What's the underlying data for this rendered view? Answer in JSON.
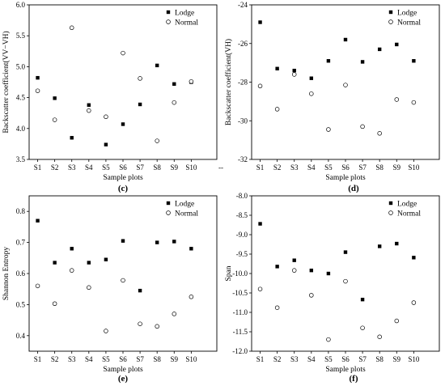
{
  "chart_data": [
    {
      "id": "c",
      "type": "scatter",
      "panel_label": "(c)",
      "xlabel": "Sample plots",
      "ylabel": "Backscatter coefficient(VV−VH)",
      "categories": [
        "S1",
        "S2",
        "S3",
        "S4",
        "S5",
        "S6",
        "S7",
        "S8",
        "S9",
        "S10"
      ],
      "extra_xtick": "--",
      "ylim": [
        3.5,
        6.0
      ],
      "yticks": [
        "3.5",
        "4.0",
        "4.5",
        "5.0",
        "5.5",
        "6.0"
      ],
      "legend_position": "top-right",
      "series": [
        {
          "name": "Lodge",
          "marker": "filled-square",
          "values": [
            4.82,
            4.49,
            3.85,
            4.38,
            3.74,
            4.07,
            4.39,
            5.02,
            4.72,
            4.75
          ]
        },
        {
          "name": "Normal",
          "marker": "open-circle",
          "values": [
            4.61,
            4.14,
            5.63,
            4.29,
            4.19,
            5.22,
            4.81,
            3.8,
            4.42,
            4.76
          ]
        }
      ]
    },
    {
      "id": "d",
      "type": "scatter",
      "panel_label": "(d)",
      "xlabel": "Sample plots",
      "ylabel": "Backscatter coefficient(VH)",
      "categories": [
        "S1",
        "S2",
        "S3",
        "S4",
        "S5",
        "S6",
        "S7",
        "S8",
        "S9",
        "S10"
      ],
      "ylim": [
        -32,
        -24
      ],
      "yticks": [
        "-32",
        "-30",
        "-28",
        "-26",
        "-24"
      ],
      "legend_position": "top-right",
      "series": [
        {
          "name": "Lodge",
          "marker": "filled-square",
          "values": [
            -24.9,
            -27.3,
            -27.4,
            -27.8,
            -26.9,
            -25.8,
            -26.95,
            -26.3,
            -26.05,
            -26.9
          ]
        },
        {
          "name": "Normal",
          "marker": "open-circle",
          "values": [
            -28.2,
            -29.4,
            -27.6,
            -28.6,
            -30.45,
            -28.15,
            -30.3,
            -30.65,
            -28.9,
            -29.05
          ]
        }
      ]
    },
    {
      "id": "e",
      "type": "scatter",
      "panel_label": "(e)",
      "xlabel": "Sample plots",
      "ylabel": "Shannon Entropy",
      "categories": [
        "S1",
        "S2",
        "S3",
        "S4",
        "S5",
        "S6",
        "S7",
        "S8",
        "S9",
        "S10"
      ],
      "ylim": [
        0.35,
        0.85
      ],
      "yticks": [
        "0.4",
        "0.5",
        "0.6",
        "0.7",
        "0.8"
      ],
      "legend_position": "top-right",
      "series": [
        {
          "name": "Lodge",
          "marker": "filled-square",
          "values": [
            0.77,
            0.635,
            0.68,
            0.635,
            0.645,
            0.705,
            0.545,
            0.7,
            0.703,
            0.68
          ]
        },
        {
          "name": "Normal",
          "marker": "open-circle",
          "values": [
            0.56,
            0.503,
            0.61,
            0.555,
            0.415,
            0.578,
            0.438,
            0.43,
            0.47,
            0.525
          ]
        }
      ]
    },
    {
      "id": "f",
      "type": "scatter",
      "panel_label": "(f)",
      "xlabel": "Sample plots",
      "ylabel": "Span",
      "categories": [
        "S1",
        "S2",
        "S3",
        "S4",
        "S5",
        "S6",
        "S7",
        "S8",
        "S9",
        "S10"
      ],
      "ylim": [
        -12.0,
        -8.0
      ],
      "yticks": [
        "-12.0",
        "-11.5",
        "-11.0",
        "-10.5",
        "-10.0",
        "-9.5",
        "-9.0",
        "-8.5",
        "-8.0"
      ],
      "legend_position": "top-right",
      "series": [
        {
          "name": "Lodge",
          "marker": "filled-square",
          "values": [
            -8.72,
            -9.82,
            -9.66,
            -9.92,
            -10.0,
            -9.45,
            -10.67,
            -9.3,
            -9.23,
            -9.59
          ]
        },
        {
          "name": "Normal",
          "marker": "open-circle",
          "values": [
            -10.4,
            -10.88,
            -9.92,
            -10.56,
            -11.7,
            -10.2,
            -11.4,
            -11.63,
            -11.22,
            -10.75
          ]
        }
      ]
    }
  ]
}
